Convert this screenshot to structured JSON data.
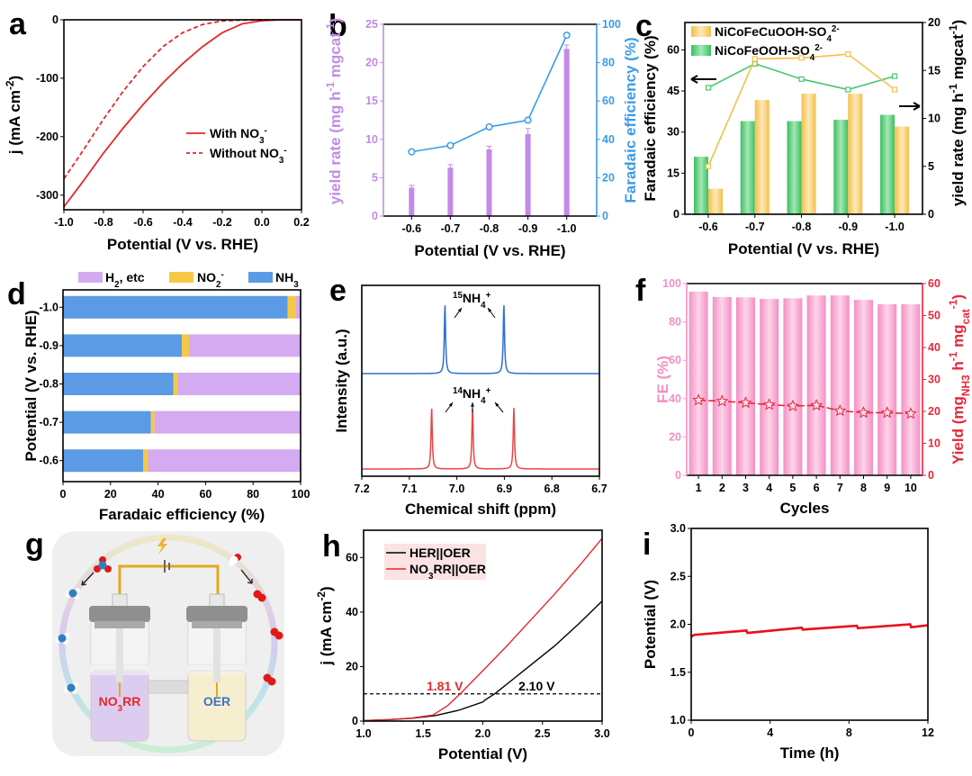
{
  "panel_labels": [
    "a",
    "b",
    "c",
    "d",
    "e",
    "f",
    "g",
    "h",
    "i"
  ],
  "chart_data": [
    {
      "id": "a",
      "type": "line",
      "xlabel": "Potential (V vs. RHE)",
      "ylabel": "j (mA cm-2)",
      "xlim": [
        -1.0,
        0.2
      ],
      "ylim": [
        -325,
        0
      ],
      "xticks": [
        "-1.0",
        "-0.8",
        "-0.6",
        "-0.4",
        "-0.2",
        "0.0",
        "0.2"
      ],
      "yticks": [
        "0",
        "-100",
        "-200",
        "-300"
      ],
      "legend_position": "center-right",
      "series": [
        {
          "name": "With NO3-",
          "style": "solid",
          "color": "#e8262b",
          "x": [
            -1.0,
            -0.9,
            -0.8,
            -0.7,
            -0.6,
            -0.5,
            -0.4,
            -0.3,
            -0.2,
            -0.1,
            0.0,
            0.1,
            0.2
          ],
          "y": [
            -320,
            -275,
            -228,
            -185,
            -145,
            -108,
            -75,
            -46,
            -22,
            -7,
            -1.5,
            0,
            0
          ]
        },
        {
          "name": "Without NO3-",
          "style": "dashed",
          "color": "#e8262b",
          "x": [
            -1.0,
            -0.9,
            -0.8,
            -0.7,
            -0.6,
            -0.5,
            -0.4,
            -0.3,
            -0.2,
            -0.1,
            0.0,
            0.1,
            0.2
          ],
          "y": [
            -272,
            -222,
            -170,
            -122,
            -80,
            -46,
            -22,
            -8,
            -2,
            -0.5,
            0,
            0,
            0
          ]
        }
      ]
    },
    {
      "id": "b",
      "type": "bar",
      "xlabel": "Potential (V vs. RHE)",
      "ylabel": "yield rate (mg h-1 mgcat-1)",
      "ylabel_right": "Faradaic efficiency (%)",
      "categories": [
        "-0.6",
        "-0.7",
        "-0.8",
        "-0.9",
        "-1.0"
      ],
      "ylim": [
        0,
        25
      ],
      "ylim_right": [
        0,
        100
      ],
      "yticks": [
        "0",
        "5",
        "10",
        "15",
        "20",
        "25"
      ],
      "yticks_right": [
        "0",
        "20",
        "40",
        "60",
        "80",
        "100"
      ],
      "series": [
        {
          "name": "yield rate",
          "kind": "bar",
          "axis": "left",
          "color": "#c38ae8",
          "values": [
            3.7,
            6.3,
            8.7,
            10.7,
            21.8
          ],
          "errors": [
            0.3,
            0.4,
            0.4,
            0.7,
            0.5
          ]
        },
        {
          "name": "Faradaic efficiency",
          "kind": "line",
          "axis": "right",
          "color": "#3b9be8",
          "values": [
            33.5,
            36.8,
            46.5,
            50.0,
            94.3
          ]
        }
      ]
    },
    {
      "id": "c",
      "type": "bar",
      "xlabel": "Potential (V vs. RHE)",
      "ylabel": "Faradaic efficiency (%)",
      "ylabel_right": "yield rate (mg h-1 mgcat-1)",
      "categories": [
        "-0.6",
        "-0.7",
        "-0.8",
        "-0.9",
        "-1.0"
      ],
      "ylim": [
        0,
        70
      ],
      "ylim_right": [
        0,
        20
      ],
      "yticks": [
        "0",
        "15",
        "30",
        "45",
        "60"
      ],
      "yticks_right": [
        "0",
        "5",
        "10",
        "15",
        "20"
      ],
      "legend_position": "top-left",
      "series": [
        {
          "name": "NiCoFeOOH-SO42-",
          "kind": "bar",
          "axis": "left",
          "color": "#4cc56c",
          "values": [
            21,
            34,
            34,
            34.5,
            36.3
          ]
        },
        {
          "name": "NiCoFeCuOOH-SO42-",
          "kind": "bar",
          "axis": "left",
          "color": "#f5c85a",
          "values": [
            9.3,
            41.7,
            44,
            44,
            32
          ]
        },
        {
          "name": "NiCoFeOOH-SO42- line",
          "kind": "line",
          "axis": "right",
          "color": "#4cc56c",
          "values": [
            13.2,
            15.7,
            14.1,
            13.0,
            14.4
          ]
        },
        {
          "name": "NiCoFeCuOOH-SO42- line",
          "kind": "line",
          "axis": "right",
          "color": "#f5c85a",
          "values": [
            5.0,
            16.2,
            16.3,
            16.7,
            13.0
          ]
        }
      ]
    },
    {
      "id": "d",
      "type": "bar",
      "orientation": "horizontal-stacked",
      "xlabel": "Faradaic efficiency (%)",
      "ylabel": "Potential (V vs. RHE)",
      "categories": [
        "-1.0",
        "-0.9",
        "-0.8",
        "-0.7",
        "-0.6"
      ],
      "xlim": [
        0,
        100
      ],
      "xticks": [
        "0",
        "20",
        "40",
        "60",
        "80",
        "100"
      ],
      "legend_position": "top",
      "series": [
        {
          "name": "NH3",
          "color": "#5b9be6",
          "values": [
            94.5,
            50,
            46.5,
            37,
            33.8
          ]
        },
        {
          "name": "NO2-",
          "color": "#f7c844",
          "values": [
            3.3,
            3,
            1.8,
            1.5,
            2
          ]
        },
        {
          "name": "H2, etc",
          "color": "#d4aaf0",
          "values": [
            2.2,
            47,
            51.7,
            61.5,
            64.2
          ]
        }
      ]
    },
    {
      "id": "e",
      "type": "line",
      "xlabel": "Chemical shift (ppm)",
      "ylabel": "Intensity (a.u.)",
      "xlim": [
        7.2,
        6.7
      ],
      "xticks": [
        "7.2",
        "7.1",
        "7.0",
        "6.9",
        "6.8",
        "6.7"
      ],
      "annotations": [
        "15NH4+",
        "14NH4+"
      ],
      "series": [
        {
          "name": "15NH4+",
          "color": "#2d6fd2",
          "peaks": [
            7.025,
            6.901
          ]
        },
        {
          "name": "14NH4+",
          "color": "#e84545",
          "peaks": [
            7.053,
            6.967,
            6.88
          ]
        }
      ]
    },
    {
      "id": "f",
      "type": "bar",
      "xlabel": "Cycles",
      "ylabel": "FE (%)",
      "ylabel_right": "Yield (mgNH3 h-1 mgcat-1)",
      "categories": [
        "1",
        "2",
        "3",
        "4",
        "5",
        "6",
        "7",
        "8",
        "9",
        "10"
      ],
      "ylim": [
        0,
        100
      ],
      "ylim_right": [
        0,
        60
      ],
      "yticks": [
        "0",
        "20",
        "40",
        "60",
        "80",
        "100"
      ],
      "yticks_right": [
        "0",
        "10",
        "20",
        "30",
        "40",
        "50",
        "60"
      ],
      "series": [
        {
          "name": "FE",
          "kind": "bar",
          "axis": "left",
          "color": "#f7a6cf",
          "values": [
            95.8,
            93,
            92.8,
            92,
            92.3,
            93.8,
            93.8,
            91.5,
            89.2,
            89.2
          ]
        },
        {
          "name": "Yield",
          "kind": "line",
          "axis": "right",
          "color": "#e8263a",
          "values": [
            23.5,
            23.2,
            22.7,
            22.1,
            21.7,
            21.9,
            20.2,
            19.6,
            19.6,
            19.3
          ]
        }
      ]
    },
    {
      "id": "h",
      "type": "line",
      "xlabel": "Potential (V)",
      "ylabel": "j (mA cm-2)",
      "xlim": [
        1.0,
        3.0
      ],
      "ylim": [
        0,
        70
      ],
      "xticks": [
        "1.0",
        "1.5",
        "2.0",
        "2.5",
        "3.0"
      ],
      "yticks": [
        "0",
        "20",
        "40",
        "60"
      ],
      "legend_position": "top-left",
      "reference_line_y": 10,
      "annotations": [
        {
          "text": "1.81 V",
          "color": "#e8262b"
        },
        {
          "text": "2.10 V",
          "color": "#000000"
        }
      ],
      "series": [
        {
          "name": "HER||OER",
          "color": "#000000",
          "x": [
            1.0,
            1.2,
            1.4,
            1.6,
            1.8,
            2.0,
            2.02,
            2.1,
            2.2,
            2.4,
            2.6,
            2.8,
            3.0
          ],
          "y": [
            0.2,
            0.5,
            1.0,
            2.0,
            4.0,
            7.0,
            7.8,
            10,
            13.5,
            20.5,
            27.5,
            35.5,
            44
          ]
        },
        {
          "name": "NO3RR||OER",
          "color": "#e8262b",
          "x": [
            1.0,
            1.2,
            1.4,
            1.58,
            1.7,
            1.81,
            2.0,
            2.2,
            2.4,
            2.6,
            2.8,
            3.0
          ],
          "y": [
            0.2,
            0.5,
            1.1,
            2.2,
            5.5,
            10,
            18.5,
            27.5,
            37,
            46.5,
            56.5,
            67
          ]
        }
      ]
    },
    {
      "id": "i",
      "type": "line",
      "xlabel": "Time (h)",
      "ylabel": "Potential (V)",
      "xlim": [
        0,
        12
      ],
      "ylim": [
        1.0,
        3.0
      ],
      "xticks": [
        "0",
        "4",
        "8",
        "12"
      ],
      "yticks": [
        "1.0",
        "1.5",
        "2.0",
        "2.5",
        "3.0"
      ],
      "series": [
        {
          "name": "potential",
          "color": "#e8101a",
          "x": [
            0,
            0.15,
            2.8,
            2.85,
            5.6,
            5.65,
            8.4,
            8.45,
            11.1,
            11.15,
            12
          ],
          "y": [
            1.87,
            1.89,
            1.935,
            1.91,
            1.965,
            1.945,
            1.985,
            1.96,
            2.0,
            1.97,
            1.99
          ]
        }
      ]
    }
  ],
  "schematic_g": {
    "left_cell_label": "NO3RR",
    "right_cell_label": "OER",
    "colors": {
      "left_electrolyte": "#dccdf0",
      "right_electrolyte": "#f6efcf",
      "wire": "#e3a820",
      "ring_purple": "#d9c8ee",
      "ring_green": "#cdeedd",
      "nitrogen": "#2c7fc5",
      "oxygen": "#e01818"
    }
  }
}
